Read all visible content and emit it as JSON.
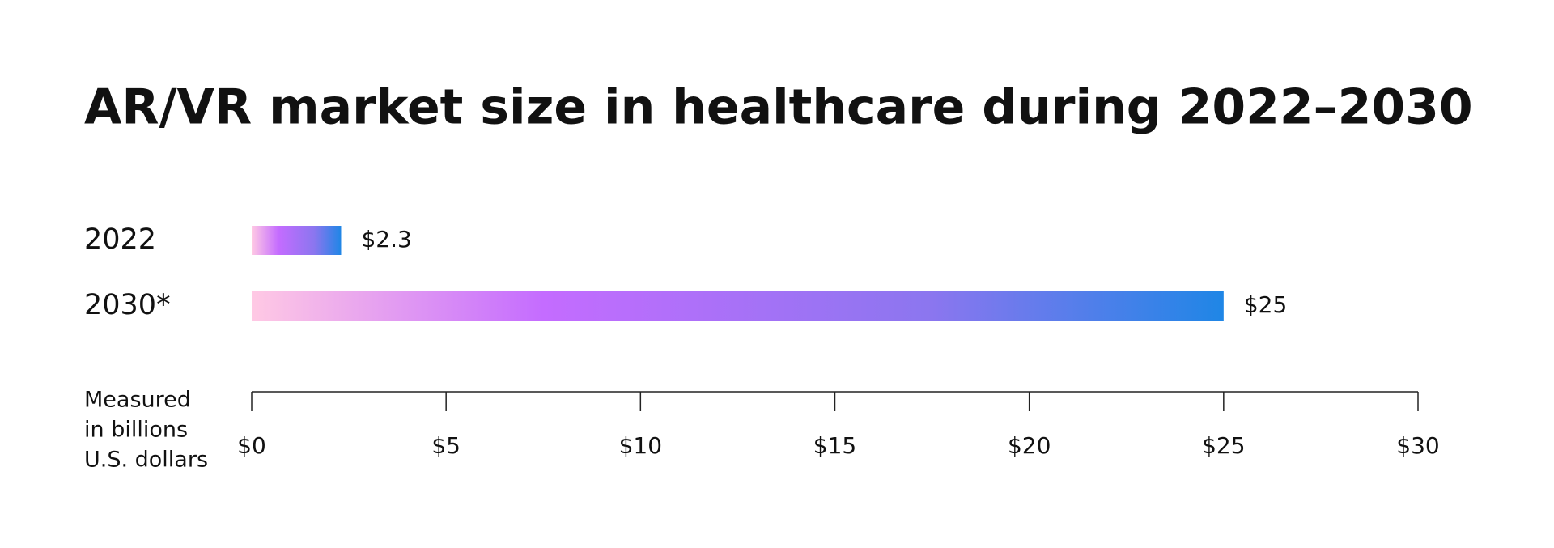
{
  "chart_data": {
    "type": "hbar",
    "title": "AR/VR market size in healthcare during 2022–2030",
    "categories": [
      "2022",
      "2030*"
    ],
    "values": [
      2.3,
      25
    ],
    "value_labels": [
      "$2.3",
      "$25"
    ],
    "colors": [
      "#ffc9e4",
      "#c46cff",
      "#8b76ef",
      "#1f86e6"
    ],
    "xlim": [
      0,
      30
    ],
    "xticks": [
      {
        "value": 0,
        "label": "$0"
      },
      {
        "value": 5,
        "label": "$5"
      },
      {
        "value": 10,
        "label": "$10"
      },
      {
        "value": 15,
        "label": "$15"
      },
      {
        "value": 20,
        "label": "$20"
      },
      {
        "value": 25,
        "label": "$25"
      },
      {
        "value": 30,
        "label": "$30"
      }
    ],
    "xlabel": [
      "Measured",
      "in billions",
      "U.S. dollars"
    ]
  }
}
